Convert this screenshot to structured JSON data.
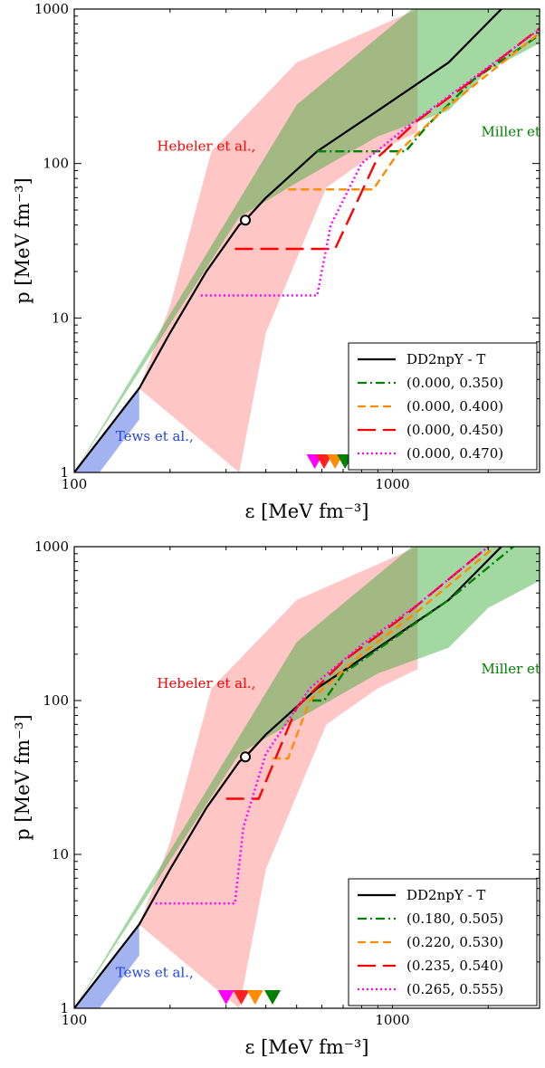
{
  "chart_data": [
    {
      "type": "line",
      "xlabel": "ε [MeV fm⁻³]",
      "ylabel": "p [MeV fm⁻³]",
      "xscale": "log",
      "yscale": "log",
      "xlim": [
        100,
        2900
      ],
      "ylim": [
        1,
        1000
      ],
      "xticks": [
        "100",
        "1000"
      ],
      "yticks": [
        "1",
        "10",
        "100",
        "1000"
      ],
      "legend_position": "bottom-right",
      "bands": [
        {
          "label": "Hebeler et al.,",
          "color": "#ff8080",
          "upper": [
            [
              160,
              3.5
            ],
            [
              200,
              12
            ],
            [
              270,
              120
            ],
            [
              500,
              450
            ],
            [
              1200,
              1000
            ]
          ],
          "lower": [
            [
              330,
              1
            ],
            [
              400,
              8
            ],
            [
              620,
              70
            ],
            [
              900,
              120
            ],
            [
              1200,
              160
            ]
          ]
        },
        {
          "label": "Miller et al.,",
          "color": "#33a833",
          "upper": [
            [
              100,
              1
            ],
            [
              165,
              5.5
            ],
            [
              500,
              240
            ],
            [
              1150,
              1000
            ],
            [
              2900,
              1000
            ]
          ],
          "lower": [
            [
              330,
              45
            ],
            [
              500,
              75
            ],
            [
              900,
              150
            ],
            [
              1500,
              220
            ],
            [
              2000,
              400
            ],
            [
              2900,
              600
            ]
          ]
        },
        {
          "label": "Tews et al.,",
          "color": "#3355dd",
          "upper": [
            [
              100,
              1
            ],
            [
              160,
              3.5
            ]
          ],
          "lower": [
            [
              120,
              1
            ],
            [
              160,
              2.2
            ]
          ]
        }
      ],
      "marker_point": [
        345,
        43
      ],
      "arrows": [
        {
          "x": 570,
          "color": "#ff00ff"
        },
        {
          "x": 610,
          "color": "#ff2020"
        },
        {
          "x": 660,
          "color": "#ff8c00"
        },
        {
          "x": 710,
          "color": "#008000"
        }
      ],
      "series": [
        {
          "name": "DD2npY - T",
          "color": "#000000",
          "dash": "",
          "points": [
            [
              100,
              1
            ],
            [
              160,
              3.5
            ],
            [
              200,
              8
            ],
            [
              260,
              20
            ],
            [
              330,
              40
            ],
            [
              345,
              43
            ],
            [
              400,
              60
            ],
            [
              580,
              120
            ],
            [
              900,
              220
            ],
            [
              1500,
              450
            ],
            [
              2200,
              1000
            ]
          ]
        },
        {
          "name": "(0.000, 0.350)",
          "color": "#008000",
          "dash": "dashdot",
          "points": [
            [
              580,
              120
            ],
            [
              1100,
              120
            ],
            [
              1300,
              180
            ],
            [
              1800,
              350
            ],
            [
              2900,
              680
            ]
          ]
        },
        {
          "name": "(0.000, 0.400)",
          "color": "#ff8c00",
          "dash": "dash",
          "points": [
            [
              470,
              68
            ],
            [
              870,
              68
            ],
            [
              1050,
              120
            ],
            [
              1400,
              210
            ],
            [
              2000,
              380
            ],
            [
              2900,
              700
            ]
          ]
        },
        {
          "name": "(0.000, 0.450)",
          "color": "#ff0000",
          "dash": "longdash",
          "points": [
            [
              320,
              28
            ],
            [
              660,
              28
            ],
            [
              900,
              110
            ],
            [
              1200,
              190
            ],
            [
              1800,
              350
            ],
            [
              2900,
              750
            ]
          ]
        },
        {
          "name": "(0.000, 0.470)",
          "color": "#ff00ff",
          "dash": "dot",
          "points": [
            [
              250,
              14
            ],
            [
              580,
              14
            ],
            [
              640,
              40
            ],
            [
              800,
              100
            ],
            [
              1100,
              170
            ],
            [
              1600,
              300
            ],
            [
              2900,
              740
            ]
          ]
        }
      ],
      "annotations": [
        {
          "text": "Hebeler et al.,",
          "color": "#ff0000",
          "x": 182,
          "y": 121
        },
        {
          "text": "Miller et al.,",
          "color": "#008000",
          "x": 1900,
          "y": 150
        },
        {
          "text": "Tews et al.,",
          "color": "#2244dd",
          "x": 135,
          "y": 1.6
        }
      ]
    },
    {
      "type": "line",
      "xlabel": "ε [MeV fm⁻³]",
      "ylabel": "p [MeV fm⁻³]",
      "xscale": "log",
      "yscale": "log",
      "xlim": [
        100,
        2900
      ],
      "ylim": [
        1,
        1000
      ],
      "xticks": [
        "100",
        "1000"
      ],
      "yticks": [
        "1",
        "10",
        "100",
        "1000"
      ],
      "legend_position": "bottom-right",
      "bands": [
        {
          "label": "Hebeler et al.,",
          "color": "#ff8080",
          "upper": [
            [
              160,
              3.5
            ],
            [
              200,
              12
            ],
            [
              270,
              120
            ],
            [
              500,
              450
            ],
            [
              1200,
              1000
            ]
          ],
          "lower": [
            [
              330,
              1
            ],
            [
              400,
              8
            ],
            [
              620,
              70
            ],
            [
              900,
              120
            ],
            [
              1200,
              160
            ]
          ]
        },
        {
          "label": "Miller et al.,",
          "color": "#33a833",
          "upper": [
            [
              100,
              1
            ],
            [
              165,
              5.5
            ],
            [
              500,
              240
            ],
            [
              1150,
              1000
            ],
            [
              2900,
              1000
            ]
          ],
          "lower": [
            [
              330,
              45
            ],
            [
              500,
              75
            ],
            [
              900,
              150
            ],
            [
              1500,
              220
            ],
            [
              2000,
              400
            ],
            [
              2900,
              600
            ]
          ]
        },
        {
          "label": "Tews et al.,",
          "color": "#3355dd",
          "upper": [
            [
              100,
              1
            ],
            [
              160,
              3.5
            ]
          ],
          "lower": [
            [
              120,
              1
            ],
            [
              160,
              2.2
            ]
          ]
        }
      ],
      "marker_point": [
        345,
        43
      ],
      "arrows": [
        {
          "x": 300,
          "color": "#ff00ff"
        },
        {
          "x": 335,
          "color": "#ff2020"
        },
        {
          "x": 370,
          "color": "#ff8c00"
        },
        {
          "x": 420,
          "color": "#008000"
        }
      ],
      "series": [
        {
          "name": "DD2npY - T",
          "color": "#000000",
          "dash": "",
          "points": [
            [
              100,
              1
            ],
            [
              160,
              3.5
            ],
            [
              200,
              8
            ],
            [
              260,
              20
            ],
            [
              330,
              40
            ],
            [
              345,
              43
            ],
            [
              400,
              60
            ],
            [
              580,
              120
            ],
            [
              900,
              220
            ],
            [
              1500,
              450
            ],
            [
              2200,
              1000
            ]
          ]
        },
        {
          "name": "(0.180, 0.505)",
          "color": "#008000",
          "dash": "dashdot",
          "points": [
            [
              560,
              100
            ],
            [
              610,
              100
            ],
            [
              700,
              150
            ],
            [
              1000,
              250
            ],
            [
              1500,
              450
            ],
            [
              2400,
              1000
            ]
          ]
        },
        {
          "name": "(0.220, 0.530)",
          "color": "#ff8c00",
          "dash": "dash",
          "points": [
            [
              420,
              42
            ],
            [
              470,
              42
            ],
            [
              550,
              100
            ],
            [
              800,
              200
            ],
            [
              1200,
              380
            ],
            [
              2100,
              1000
            ]
          ]
        },
        {
          "name": "(0.235, 0.540)",
          "color": "#ff0000",
          "dash": "longdash",
          "points": [
            [
              300,
              23
            ],
            [
              380,
              23
            ],
            [
              500,
              90
            ],
            [
              700,
              180
            ],
            [
              1100,
              360
            ],
            [
              2000,
              1000
            ]
          ]
        },
        {
          "name": "(0.265, 0.555)",
          "color": "#ff00ff",
          "dash": "dot",
          "points": [
            [
              180,
              4.8
            ],
            [
              320,
              4.8
            ],
            [
              340,
              15
            ],
            [
              400,
              45
            ],
            [
              550,
              120
            ],
            [
              800,
              230
            ],
            [
              1200,
              420
            ],
            [
              2000,
              1000
            ]
          ]
        }
      ],
      "annotations": [
        {
          "text": "Hebeler et al.,",
          "color": "#ff0000",
          "x": 182,
          "y": 121
        },
        {
          "text": "Miller et al.,",
          "color": "#008000",
          "x": 1900,
          "y": 150
        },
        {
          "text": "Tews et al.,",
          "color": "#2244dd",
          "x": 135,
          "y": 1.6
        }
      ]
    }
  ]
}
